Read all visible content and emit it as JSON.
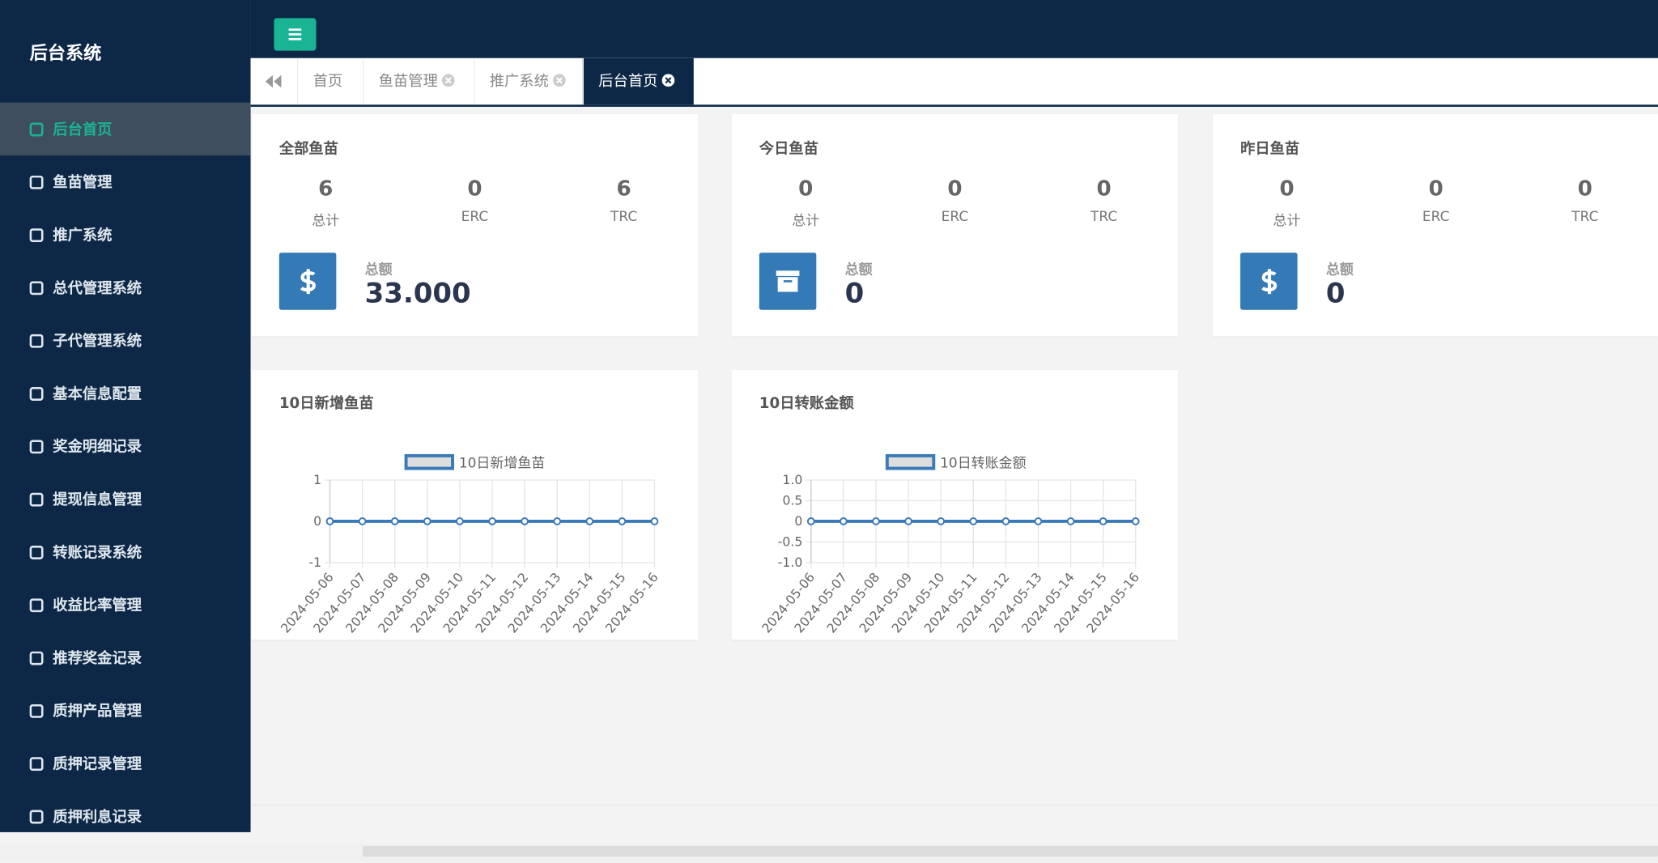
{
  "sidebar": {
    "title": "后台系统",
    "menu": [
      "后台首页",
      "鱼苗管理",
      "推广系统",
      "总代管理系统",
      "子代管理系统",
      "基本信息配置",
      "奖金明细记录",
      "提现信息管理",
      "转账记录系统",
      "收益比率管理",
      "推荐奖金记录",
      "质押产品管理",
      "质押记录管理",
      "质押利息记录"
    ]
  },
  "tabs": [
    "首页",
    "鱼苗管理",
    "推广系统",
    "后台首页"
  ],
  "cards": [
    {
      "title": "全部鱼苗",
      "stats": [
        {
          "value": 6,
          "label": "总计"
        },
        {
          "value": 0,
          "label": "ERC"
        },
        {
          "value": 6,
          "label": "TRC"
        }
      ],
      "total_label": "总额",
      "total": "33.000"
    },
    {
      "title": "今日鱼苗",
      "stats": [
        {
          "value": 0,
          "label": "总计"
        },
        {
          "value": 0,
          "label": "ERC"
        },
        {
          "value": 0,
          "label": "TRC"
        }
      ],
      "total_label": "总额",
      "total": "0"
    },
    {
      "title": "昨日鱼苗",
      "stats": [
        {
          "value": 0,
          "label": "总计"
        },
        {
          "value": 0,
          "label": "ERC"
        },
        {
          "value": 0,
          "label": "TRC"
        }
      ],
      "total_label": "总额",
      "total": "0"
    }
  ],
  "chart_data": [
    {
      "type": "line",
      "title": "10日新增鱼苗",
      "categories": [
        "2024-05-06",
        "2024-05-07",
        "2024-05-08",
        "2024-05-09",
        "2024-05-10",
        "2024-05-11",
        "2024-05-12",
        "2024-05-13",
        "2024-05-14",
        "2024-05-15",
        "2024-05-16"
      ],
      "series": [
        {
          "name": "10日新增鱼苗",
          "color": "#3a7ab8",
          "values": [
            0,
            0,
            0,
            0,
            0,
            0,
            0,
            0,
            0,
            0,
            0
          ]
        }
      ],
      "ylim": [
        -1,
        1
      ],
      "yticks": [
        -1,
        0,
        1
      ],
      "grid": true
    },
    {
      "type": "line",
      "title": "10日转账金额",
      "categories": [
        "2024-05-06",
        "2024-05-07",
        "2024-05-08",
        "2024-05-09",
        "2024-05-10",
        "2024-05-11",
        "2024-05-12",
        "2024-05-13",
        "2024-05-14",
        "2024-05-15",
        "2024-05-16"
      ],
      "series": [
        {
          "name": "10日转账金额",
          "color": "#3a7ab8",
          "values": [
            0,
            0,
            0,
            0,
            0,
            0,
            0,
            0,
            0,
            0,
            0
          ]
        }
      ],
      "ylim": [
        -1,
        1
      ],
      "yticks": [
        {
          "value": -1,
          "label": "-1.0"
        },
        -0.5,
        0,
        0.5,
        {
          "value": 1,
          "label": "1.0"
        }
      ],
      "grid": true
    }
  ]
}
